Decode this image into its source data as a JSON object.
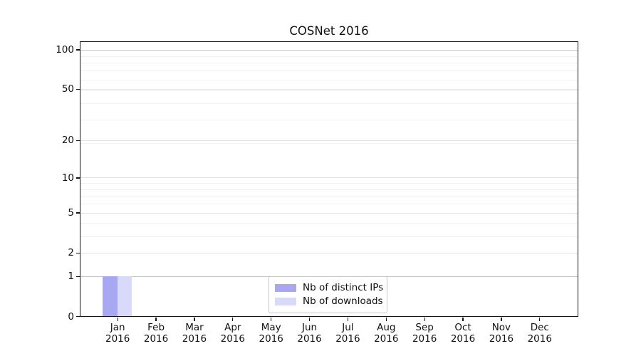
{
  "chart_data": {
    "type": "bar",
    "title": "COSNet 2016",
    "categories": [
      "Jan 2016",
      "Feb 2016",
      "Mar 2016",
      "Apr 2016",
      "May 2016",
      "Jun 2016",
      "Jul 2016",
      "Aug 2016",
      "Sep 2016",
      "Oct 2016",
      "Nov 2016",
      "Dec 2016"
    ],
    "category_month": [
      "Jan",
      "Feb",
      "Mar",
      "Apr",
      "May",
      "Jun",
      "Jul",
      "Aug",
      "Sep",
      "Oct",
      "Nov",
      "Dec"
    ],
    "category_year": [
      "2016",
      "2016",
      "2016",
      "2016",
      "2016",
      "2016",
      "2016",
      "2016",
      "2016",
      "2016",
      "2016",
      "2016"
    ],
    "series": [
      {
        "name": "Nb of distinct IPs",
        "color": "#a7a7f2",
        "values": [
          1,
          0,
          0,
          0,
          0,
          0,
          0,
          0,
          0,
          0,
          0,
          0
        ]
      },
      {
        "name": "Nb of downloads",
        "color": "#d9d9f9",
        "values": [
          1,
          0,
          0,
          0,
          0,
          0,
          0,
          0,
          0,
          0,
          0,
          0
        ]
      }
    ],
    "y_axis": {
      "scale": "log1p",
      "tick_values": [
        0,
        1,
        2,
        5,
        10,
        20,
        50,
        100
      ],
      "tick_labels": [
        "0",
        "1",
        "2",
        "5",
        "10",
        "20",
        "50",
        "100"
      ],
      "minor_values": [
        3,
        4,
        6,
        7,
        8,
        9,
        19,
        29,
        39,
        49,
        59,
        69,
        79,
        89,
        99
      ],
      "ylim": [
        0,
        114
      ]
    },
    "xlabel": "",
    "ylabel": "",
    "grid": true,
    "legend": {
      "position": "lower center",
      "entries": [
        "Nb of distinct IPs",
        "Nb of downloads"
      ]
    },
    "style": {
      "grid_major_color": "#e2e2e2",
      "grid_minor_color": "#f1f1f1",
      "grid_strong_color": "#c6c6c6",
      "axis_color": "#141414",
      "background": "#ffffff"
    }
  }
}
